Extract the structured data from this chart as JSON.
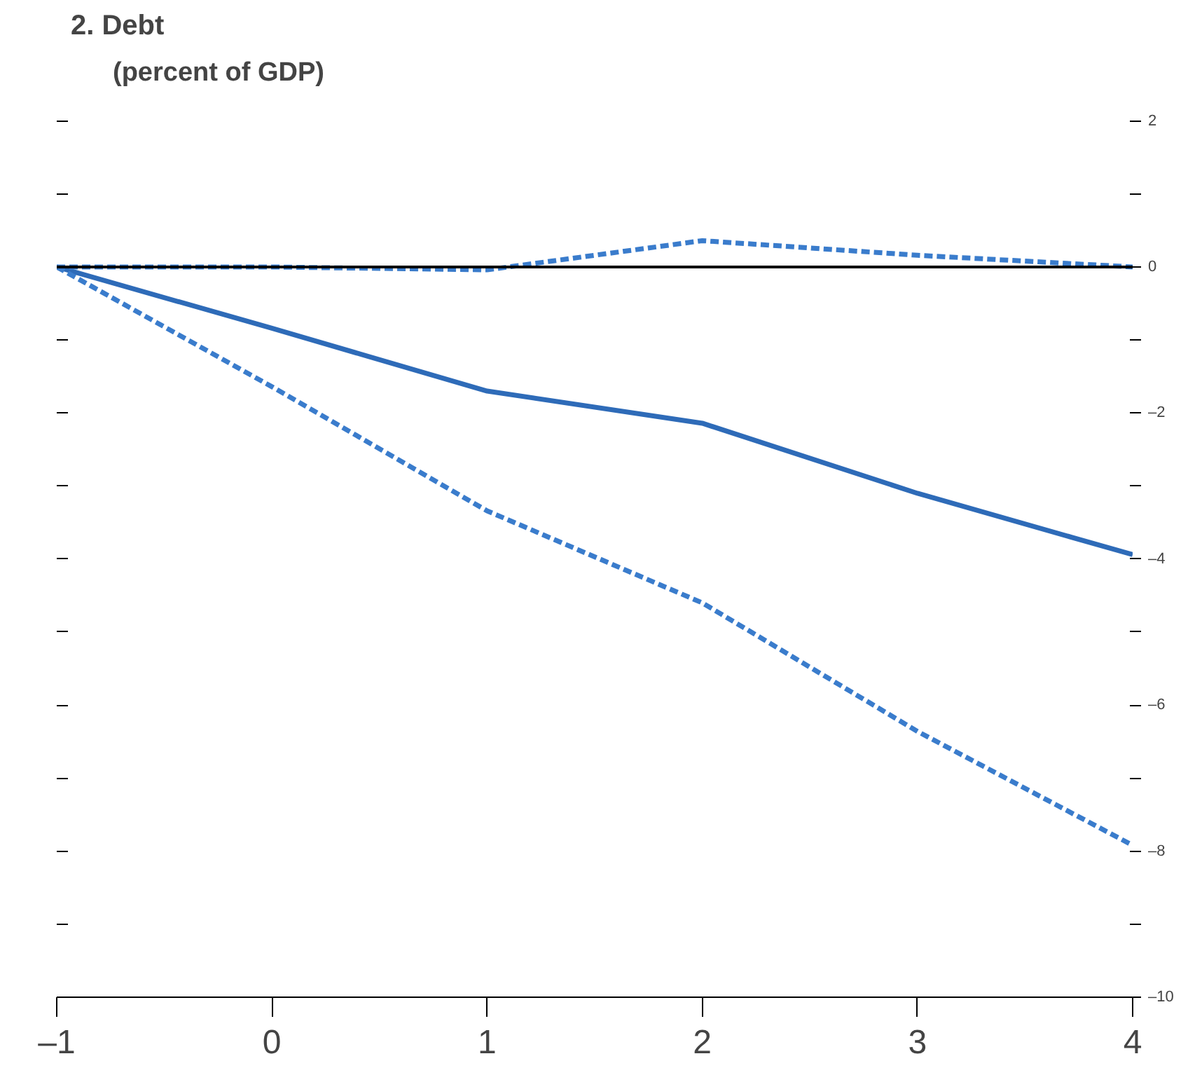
{
  "chart_data": {
    "type": "line",
    "title": "2. Debt",
    "subtitle": "(percent of GDP)",
    "x": [
      -1,
      0,
      1,
      2,
      3,
      4
    ],
    "series": [
      {
        "color": "#2e6bb8",
        "line_style": "solid",
        "values": [
          0,
          -0.84,
          -1.7,
          -2.14,
          -3.1,
          -3.94
        ]
      },
      {
        "color": "#3a7ccc",
        "line_style": "dashed",
        "values": [
          0,
          -1.64,
          -3.34,
          -4.6,
          -6.36,
          -7.92
        ]
      },
      {
        "color": "#3a7ccc",
        "line_style": "dashed",
        "values": [
          0,
          0,
          -0.04,
          0.36,
          0.16,
          0
        ]
      }
    ],
    "xlim": [
      -1,
      4
    ],
    "xticks": [
      {
        "value": -1,
        "label": "–1"
      },
      0,
      1,
      2,
      3,
      4
    ],
    "ylim": [
      -10,
      2
    ],
    "yticks": [
      {
        "value": -10,
        "label": "–10"
      },
      {
        "value": -9,
        "label": null
      },
      {
        "value": -8,
        "label": "–8"
      },
      {
        "value": -7,
        "label": null
      },
      {
        "value": -6,
        "label": "–6"
      },
      {
        "value": -5,
        "label": null
      },
      {
        "value": -4,
        "label": "–4"
      },
      {
        "value": -3,
        "label": null
      },
      {
        "value": -2,
        "label": "–2"
      },
      {
        "value": -1,
        "label": null
      },
      0,
      {
        "value": 1,
        "label": null
      },
      2
    ],
    "ref_lines": [
      {
        "axis": "y",
        "value": 0,
        "color": "#000000",
        "line_style": "solid"
      }
    ],
    "grid": false,
    "marker": "none"
  }
}
